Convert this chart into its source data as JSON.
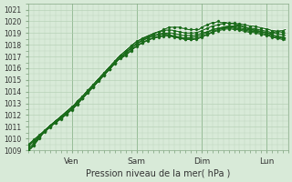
{
  "title": "",
  "xlabel": "Pression niveau de la mer( hPa )",
  "ylabel": "",
  "ylim": [
    1009,
    1021.5
  ],
  "xlim": [
    0,
    96
  ],
  "yticks": [
    1009,
    1010,
    1011,
    1012,
    1013,
    1014,
    1015,
    1016,
    1017,
    1018,
    1019,
    1020,
    1021
  ],
  "xtick_positions": [
    16,
    40,
    64,
    88
  ],
  "xtick_labels": [
    "Ven",
    "Sam",
    "Dim",
    "Lun"
  ],
  "bg_color": "#d8ead8",
  "plot_bg_color": "#d8ead8",
  "grid_color": "#b0ccb0",
  "line_color": "#1a6b1a",
  "line_color_white": "#ffffff",
  "figsize": [
    3.2,
    2.0
  ],
  "dpi": 100,
  "series": [
    [
      1009.5,
      1009.7,
      1009.9,
      1010.1,
      1010.3,
      1010.5,
      1010.7,
      1010.9,
      1011.1,
      1011.3,
      1011.5,
      1011.7,
      1011.9,
      1012.1,
      1012.3,
      1012.5,
      1012.7,
      1012.9,
      1013.2,
      1013.4,
      1013.6,
      1013.9,
      1014.1,
      1014.4,
      1014.6,
      1014.9,
      1015.1,
      1015.4,
      1015.6,
      1015.9,
      1016.1,
      1016.4,
      1016.6,
      1016.9,
      1017.1,
      1017.3,
      1017.5,
      1017.7,
      1017.9,
      1018.1,
      1018.3,
      1018.4,
      1018.5,
      1018.6,
      1018.7,
      1018.8,
      1018.9,
      1019.0,
      1019.1,
      1019.2,
      1019.3,
      1019.4,
      1019.5,
      1019.5,
      1019.5,
      1019.5,
      1019.5,
      1019.4,
      1019.4,
      1019.3,
      1019.3,
      1019.3,
      1019.3,
      1019.3,
      1019.5,
      1019.6,
      1019.7,
      1019.8,
      1019.9,
      1019.9,
      1020.0,
      1019.9,
      1019.9,
      1019.9,
      1019.8,
      1019.8,
      1019.8,
      1019.7,
      1019.7,
      1019.6,
      1019.5,
      1019.4,
      1019.3,
      1019.3,
      1019.2,
      1019.2,
      1019.1,
      1019.1,
      1019.0,
      1019.0,
      1019.0,
      1019.1,
      1019.1,
      1019.2,
      1019.2,
      1019.3
    ],
    [
      1009.3,
      1009.55,
      1009.75,
      1009.95,
      1010.15,
      1010.35,
      1010.55,
      1010.75,
      1010.95,
      1011.15,
      1011.35,
      1011.55,
      1011.75,
      1011.95,
      1012.15,
      1012.35,
      1012.55,
      1012.75,
      1012.95,
      1013.2,
      1013.45,
      1013.7,
      1013.95,
      1014.2,
      1014.45,
      1014.7,
      1014.95,
      1015.2,
      1015.45,
      1015.7,
      1015.95,
      1016.2,
      1016.45,
      1016.7,
      1016.95,
      1017.15,
      1017.35,
      1017.55,
      1017.75,
      1017.95,
      1018.1,
      1018.25,
      1018.4,
      1018.5,
      1018.6,
      1018.7,
      1018.8,
      1018.85,
      1018.9,
      1018.95,
      1019.0,
      1019.0,
      1019.0,
      1019.0,
      1018.95,
      1018.9,
      1018.85,
      1018.8,
      1018.8,
      1018.8,
      1018.8,
      1018.8,
      1018.85,
      1018.9,
      1019.0,
      1019.05,
      1019.1,
      1019.2,
      1019.3,
      1019.35,
      1019.4,
      1019.45,
      1019.5,
      1019.55,
      1019.6,
      1019.6,
      1019.6,
      1019.6,
      1019.6,
      1019.55,
      1019.5,
      1019.45,
      1019.4,
      1019.4,
      1019.35,
      1019.3,
      1019.25,
      1019.2,
      1019.15,
      1019.1,
      1019.0,
      1019.0,
      1018.95,
      1018.9,
      1018.85,
      1018.8
    ],
    [
      1009.4,
      1009.65,
      1009.85,
      1010.05,
      1010.25,
      1010.45,
      1010.65,
      1010.85,
      1011.05,
      1011.25,
      1011.45,
      1011.65,
      1011.85,
      1012.05,
      1012.25,
      1012.45,
      1012.65,
      1012.85,
      1013.1,
      1013.35,
      1013.6,
      1013.85,
      1014.1,
      1014.35,
      1014.6,
      1014.85,
      1015.1,
      1015.35,
      1015.6,
      1015.85,
      1016.1,
      1016.35,
      1016.6,
      1016.85,
      1017.1,
      1017.3,
      1017.5,
      1017.7,
      1017.9,
      1018.1,
      1018.25,
      1018.4,
      1018.55,
      1018.65,
      1018.75,
      1018.85,
      1018.95,
      1019.05,
      1019.1,
      1019.15,
      1019.2,
      1019.25,
      1019.25,
      1019.25,
      1019.2,
      1019.15,
      1019.1,
      1019.05,
      1019.0,
      1019.0,
      1019.0,
      1019.0,
      1019.05,
      1019.1,
      1019.2,
      1019.3,
      1019.4,
      1019.5,
      1019.6,
      1019.65,
      1019.7,
      1019.75,
      1019.8,
      1019.85,
      1019.85,
      1019.85,
      1019.85,
      1019.8,
      1019.8,
      1019.75,
      1019.7,
      1019.65,
      1019.6,
      1019.6,
      1019.55,
      1019.5,
      1019.45,
      1019.4,
      1019.35,
      1019.3,
      1019.2,
      1019.2,
      1019.15,
      1019.1,
      1019.05,
      1019.0
    ],
    [
      1009.1,
      1009.35,
      1009.6,
      1009.85,
      1010.1,
      1010.35,
      1010.6,
      1010.85,
      1011.1,
      1011.3,
      1011.5,
      1011.65,
      1011.8,
      1011.95,
      1012.1,
      1012.3,
      1012.5,
      1012.7,
      1012.95,
      1013.2,
      1013.45,
      1013.7,
      1013.95,
      1014.2,
      1014.45,
      1014.7,
      1014.95,
      1015.2,
      1015.45,
      1015.7,
      1015.95,
      1016.2,
      1016.45,
      1016.7,
      1016.9,
      1017.1,
      1017.3,
      1017.5,
      1017.7,
      1017.9,
      1018.05,
      1018.2,
      1018.35,
      1018.45,
      1018.55,
      1018.65,
      1018.75,
      1018.8,
      1018.85,
      1018.9,
      1018.9,
      1018.9,
      1018.85,
      1018.8,
      1018.75,
      1018.7,
      1018.65,
      1018.6,
      1018.6,
      1018.6,
      1018.6,
      1018.65,
      1018.7,
      1018.75,
      1018.85,
      1018.95,
      1019.05,
      1019.15,
      1019.25,
      1019.35,
      1019.4,
      1019.45,
      1019.5,
      1019.55,
      1019.55,
      1019.55,
      1019.5,
      1019.5,
      1019.45,
      1019.4,
      1019.35,
      1019.3,
      1019.25,
      1019.25,
      1019.2,
      1019.15,
      1019.1,
      1019.05,
      1019.0,
      1018.95,
      1018.85,
      1018.8,
      1018.75,
      1018.7,
      1018.65,
      1018.6
    ],
    [
      1009.0,
      1009.2,
      1009.5,
      1009.8,
      1010.1,
      1010.4,
      1010.65,
      1010.9,
      1011.1,
      1011.25,
      1011.4,
      1011.55,
      1011.7,
      1011.9,
      1012.1,
      1012.3,
      1012.5,
      1012.7,
      1012.95,
      1013.2,
      1013.45,
      1013.7,
      1013.95,
      1014.2,
      1014.45,
      1014.7,
      1014.95,
      1015.2,
      1015.45,
      1015.7,
      1015.95,
      1016.2,
      1016.45,
      1016.7,
      1016.9,
      1017.0,
      1017.15,
      1017.35,
      1017.55,
      1017.75,
      1017.9,
      1018.05,
      1018.2,
      1018.3,
      1018.4,
      1018.5,
      1018.6,
      1018.65,
      1018.7,
      1018.75,
      1018.8,
      1018.8,
      1018.8,
      1018.75,
      1018.7,
      1018.65,
      1018.6,
      1018.55,
      1018.5,
      1018.5,
      1018.5,
      1018.5,
      1018.55,
      1018.6,
      1018.7,
      1018.8,
      1018.9,
      1019.0,
      1019.1,
      1019.2,
      1019.3,
      1019.35,
      1019.4,
      1019.45,
      1019.45,
      1019.45,
      1019.4,
      1019.4,
      1019.35,
      1019.3,
      1019.25,
      1019.2,
      1019.15,
      1019.15,
      1019.1,
      1019.05,
      1019.0,
      1018.95,
      1018.9,
      1018.85,
      1018.75,
      1018.7,
      1018.65,
      1018.6,
      1018.55,
      1018.5
    ],
    [
      1009.0,
      1009.15,
      1009.4,
      1009.7,
      1010.0,
      1010.3,
      1010.6,
      1010.85,
      1011.05,
      1011.2,
      1011.35,
      1011.5,
      1011.65,
      1011.85,
      1012.05,
      1012.25,
      1012.45,
      1012.65,
      1012.9,
      1013.15,
      1013.4,
      1013.65,
      1013.9,
      1014.15,
      1014.4,
      1014.65,
      1014.9,
      1015.15,
      1015.4,
      1015.65,
      1015.9,
      1016.15,
      1016.4,
      1016.65,
      1016.85,
      1016.95,
      1017.1,
      1017.3,
      1017.5,
      1017.7,
      1017.85,
      1018.0,
      1018.15,
      1018.25,
      1018.35,
      1018.45,
      1018.55,
      1018.6,
      1018.65,
      1018.7,
      1018.75,
      1018.75,
      1018.75,
      1018.7,
      1018.65,
      1018.6,
      1018.55,
      1018.5,
      1018.45,
      1018.45,
      1018.45,
      1018.45,
      1018.5,
      1018.55,
      1018.65,
      1018.75,
      1018.85,
      1018.95,
      1019.05,
      1019.15,
      1019.2,
      1019.25,
      1019.3,
      1019.35,
      1019.35,
      1019.35,
      1019.3,
      1019.3,
      1019.25,
      1019.2,
      1019.15,
      1019.1,
      1019.05,
      1019.05,
      1019.0,
      1018.95,
      1018.9,
      1018.85,
      1018.8,
      1018.75,
      1018.65,
      1018.6,
      1018.55,
      1018.5,
      1018.45,
      1018.4
    ]
  ]
}
